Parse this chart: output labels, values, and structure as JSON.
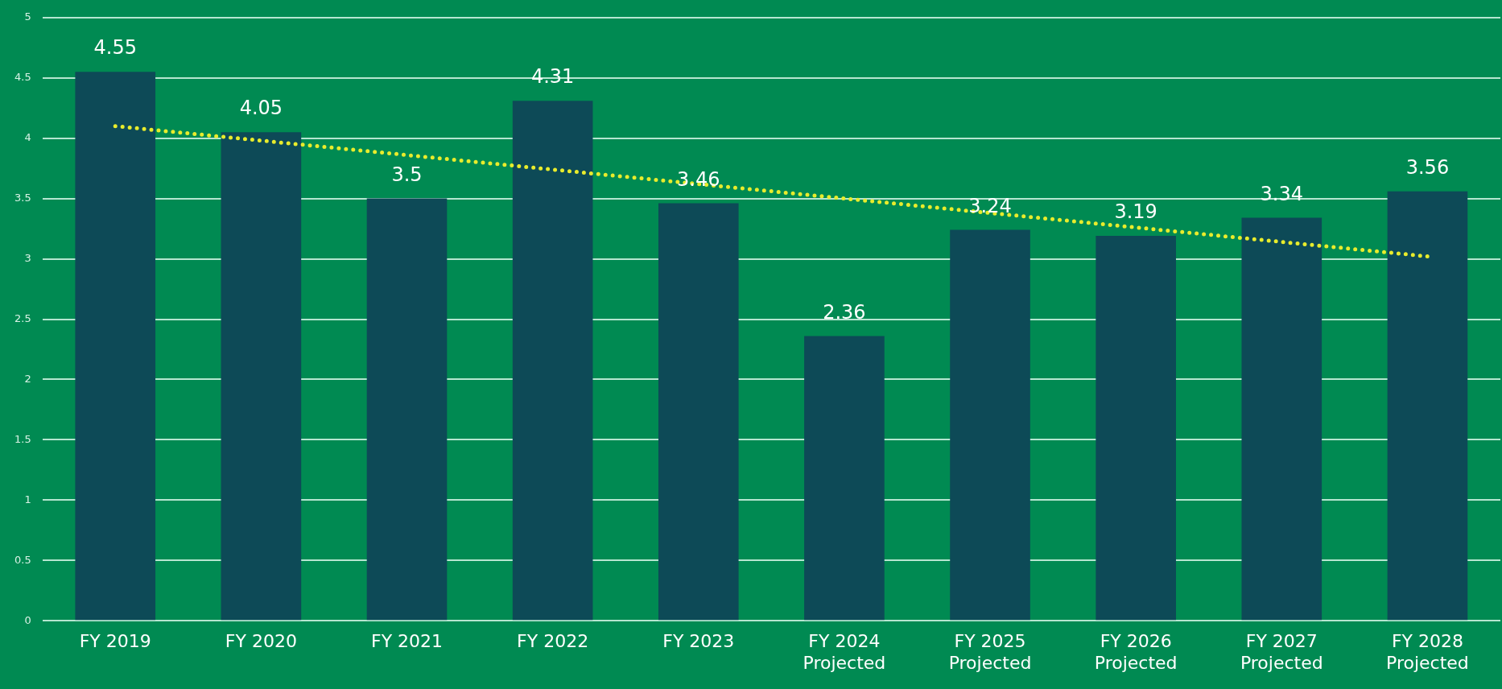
{
  "chart_data": {
    "type": "bar",
    "categories": [
      "FY 2019",
      "FY 2020",
      "FY 2021",
      "FY 2022",
      "FY 2023",
      "FY 2024\nProjected",
      "FY 2025\nProjected",
      "FY 2026\nProjected",
      "FY 2027\nProjected",
      "FY 2028\nProjected"
    ],
    "series": [
      {
        "color": "#0d4a57",
        "values": [
          4.55,
          4.05,
          3.5,
          4.31,
          3.46,
          2.36,
          3.24,
          3.19,
          3.34,
          3.56
        ],
        "value_labels": [
          "4.55",
          "4.05",
          "3.5",
          "4.31",
          "3.46",
          "2.36",
          "3.24",
          "3.19",
          "3.34",
          "3.56"
        ]
      },
      {
        "type": "line",
        "color": "#e8ec2c",
        "x": [
          "FY 2019",
          "FY 2028\nProjected"
        ],
        "values": [
          4.1,
          3.02
        ],
        "line_style": "dotted",
        "marker": "none"
      }
    ],
    "ylim": [
      0,
      5
    ],
    "yticks": [
      0,
      0.5,
      1,
      1.5,
      2,
      2.5,
      3,
      3.5,
      4,
      4.5,
      5
    ],
    "grid": "y",
    "legend": false
  }
}
